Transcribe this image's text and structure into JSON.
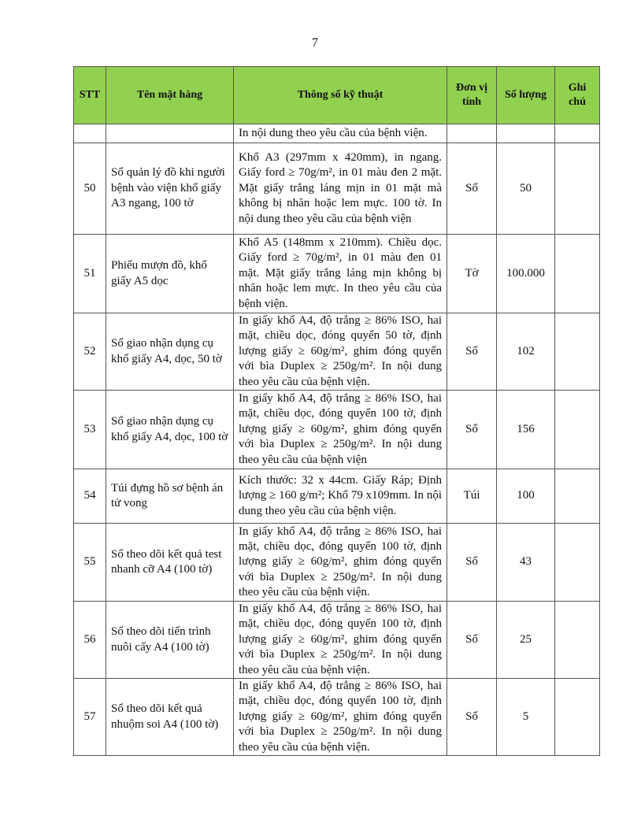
{
  "page_number": "7",
  "header": {
    "stt": "STT",
    "name": "Tên mặt hàng",
    "spec": "Thông số kỹ thuật",
    "unit": "Đơn vị tính",
    "qty": "Số lượng",
    "note": "Ghi chú"
  },
  "rows": [
    {
      "stt": "",
      "name": "",
      "spec": "In nội dung theo yêu cầu của bệnh viện.",
      "unit": "",
      "qty": "",
      "note": ""
    },
    {
      "stt": "50",
      "name": "Sổ quản lý đồ khi người bệnh vào viện khổ giấy A3 ngang, 100 tờ",
      "spec": "Khổ A3 (297mm x 420mm), in ngang. Giấy ford ≥ 70g/m², in 01 màu đen 2 mặt. Mặt giấy trắng láng mịn in 01 mặt mà không bị nhăn hoặc lem mực. 100 tờ. In nội dung theo yêu cầu của bệnh viện",
      "unit": "Sổ",
      "qty": "50",
      "note": ""
    },
    {
      "stt": "51",
      "name": "Phiếu mượn đồ, khổ giấy A5 dọc",
      "spec": "Khổ A5 (148mm x 210mm). Chiều dọc. Giấy ford ≥ 70g/m², in 01 màu đen 01 mặt. Mặt giấy trắng láng mịn không bị nhăn hoặc lem mực. In theo yêu cầu của bệnh viện.",
      "unit": "Tờ",
      "qty": "100.000",
      "note": ""
    },
    {
      "stt": "52",
      "name": "Sổ giao nhận dụng cụ khổ giấy A4, dọc, 50 tờ",
      "spec": "In giấy khổ A4, độ trắng ≥ 86% ISO, hai mặt, chiều dọc, đóng quyển 50 tờ, định lượng giấy ≥ 60g/m², ghim đóng quyển với bìa Duplex ≥ 250g/m². In nội dung theo yêu cầu của bệnh viện.",
      "unit": "Sổ",
      "qty": "102",
      "note": ""
    },
    {
      "stt": "53",
      "name": "Sổ giao nhận dụng cụ khổ giấy A4, dọc, 100 tờ",
      "spec": "In giấy khổ A4, độ trắng ≥ 86% ISO, hai mặt, chiều dọc, đóng quyển 100 tờ, định lượng giấy ≥ 60g/m², ghim đóng quyển với bìa Duplex ≥ 250g/m². In nội dung theo yêu cầu của bệnh viện",
      "unit": "Sổ",
      "qty": "156",
      "note": ""
    },
    {
      "stt": "54",
      "name": "Túi đựng hồ sơ bệnh án tử vong",
      "spec": "Kích thước: 32 x 44cm. Giấy Ráp; Định lượng ≥ 160 g/m²; Khổ 79 x109mm. In nội dung theo yêu cầu của bệnh viện.",
      "unit": "Túi",
      "qty": "100",
      "note": ""
    },
    {
      "stt": "55",
      "name": "Sổ theo dõi kết quả test nhanh cỡ A4 (100 tờ)",
      "spec": "In giấy khổ A4, độ trắng ≥ 86% ISO, hai mặt, chiều dọc, đóng quyển 100 tờ, định lượng giấy ≥ 60g/m², ghim đóng quyển với bìa Duplex ≥ 250g/m². In nội dung theo yêu cầu của bệnh viện.",
      "unit": "Sổ",
      "qty": "43",
      "note": ""
    },
    {
      "stt": "56",
      "name": "Sổ theo dõi tiến trình nuôi cấy A4 (100 tờ)",
      "spec": "In giấy khổ A4, độ trắng ≥ 86% ISO, hai mặt, chiều dọc, đóng quyển 100 tờ, định lượng giấy ≥ 60g/m², ghim đóng quyển với bìa Duplex ≥ 250g/m². In nội dung theo yêu cầu của bệnh viện.",
      "unit": "Sổ",
      "qty": "25",
      "note": ""
    },
    {
      "stt": "57",
      "name": "Sổ theo dõi kết quả nhuộm soi A4 (100 tờ)",
      "spec": "In giấy khổ A4, độ trắng ≥ 86% ISO, hai mặt, chiều dọc, đóng quyển 100 tờ, định lượng giấy ≥ 60g/m², ghim đóng quyển với bìa Duplex ≥ 250g/m². In nội dung theo yêu cầu của bệnh viện.",
      "unit": "Sổ",
      "qty": "5",
      "note": ""
    }
  ]
}
